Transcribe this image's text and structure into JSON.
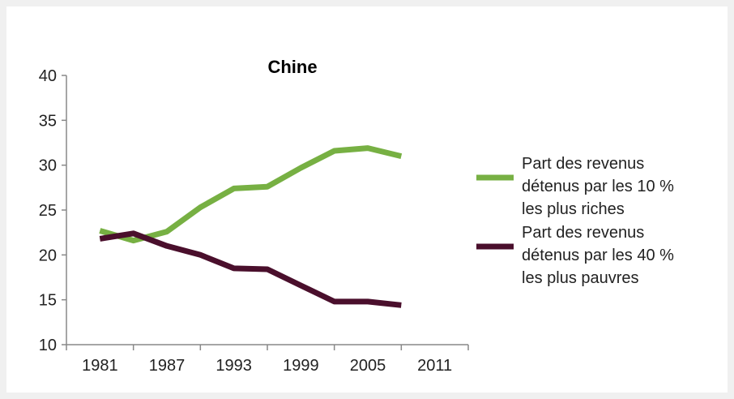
{
  "chart_data": {
    "type": "line",
    "title": "Chine",
    "xlabel": "",
    "ylabel": "",
    "x_ticks": [
      "1981",
      "1987",
      "1993",
      "1999",
      "2005",
      "2011"
    ],
    "y_ticks": [
      "10",
      "15",
      "20",
      "25",
      "30",
      "35",
      "40"
    ],
    "xlim": [
      1981,
      2011
    ],
    "ylim": [
      10,
      40
    ],
    "grid": false,
    "legend_position": "right",
    "series": [
      {
        "name": "Part des revenus détenus par les 10 % les plus riches",
        "legend_lines": [
          "Part des revenus",
          "détenus par les 10 %",
          "les plus riches"
        ],
        "color": "#77b043",
        "x": [
          1981,
          1984,
          1987,
          1990,
          1993,
          1996,
          1999,
          2002,
          2005,
          2008
        ],
        "y": [
          22.7,
          21.6,
          22.6,
          25.3,
          27.4,
          27.6,
          29.7,
          31.6,
          31.9,
          31.0
        ]
      },
      {
        "name": "Part des revenus détenus par les 40 % les plus pauvres",
        "legend_lines": [
          "Part des revenus",
          "détenus par les 40 %",
          "les plus pauvres"
        ],
        "color": "#4a0f2c",
        "x": [
          1981,
          1984,
          1987,
          1990,
          1993,
          1996,
          1999,
          2002,
          2005,
          2008
        ],
        "y": [
          21.8,
          22.4,
          21.0,
          20.0,
          18.5,
          18.4,
          16.6,
          14.8,
          14.8,
          14.4
        ]
      }
    ]
  }
}
